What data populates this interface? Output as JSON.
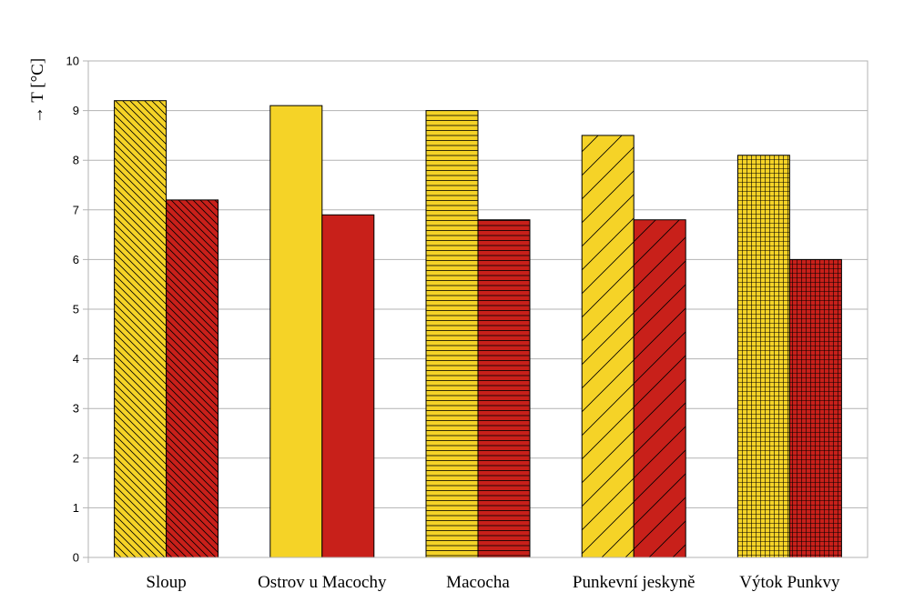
{
  "chart_data": {
    "type": "bar",
    "title": "",
    "xlabel": "",
    "ylabel": "→ T [°C]",
    "ylim": [
      0,
      10
    ],
    "yticks": [
      0,
      1,
      2,
      3,
      4,
      5,
      6,
      7,
      8,
      9,
      10
    ],
    "grid": true,
    "categories": [
      "Sloup",
      "Ostrov u Macochy",
      "Macocha",
      "Punkevní jeskyně",
      "Výtok Punkvy"
    ],
    "patterns": [
      "diag-back",
      "solid",
      "horizontal",
      "diag-forward",
      "grid"
    ],
    "series": [
      {
        "name": "series-1",
        "color": "#f5d327",
        "values": [
          9.2,
          9.1,
          9.0,
          8.5,
          8.1
        ]
      },
      {
        "name": "series-2",
        "color": "#c8201a",
        "values": [
          7.2,
          6.9,
          6.8,
          6.8,
          6.0
        ]
      }
    ]
  }
}
